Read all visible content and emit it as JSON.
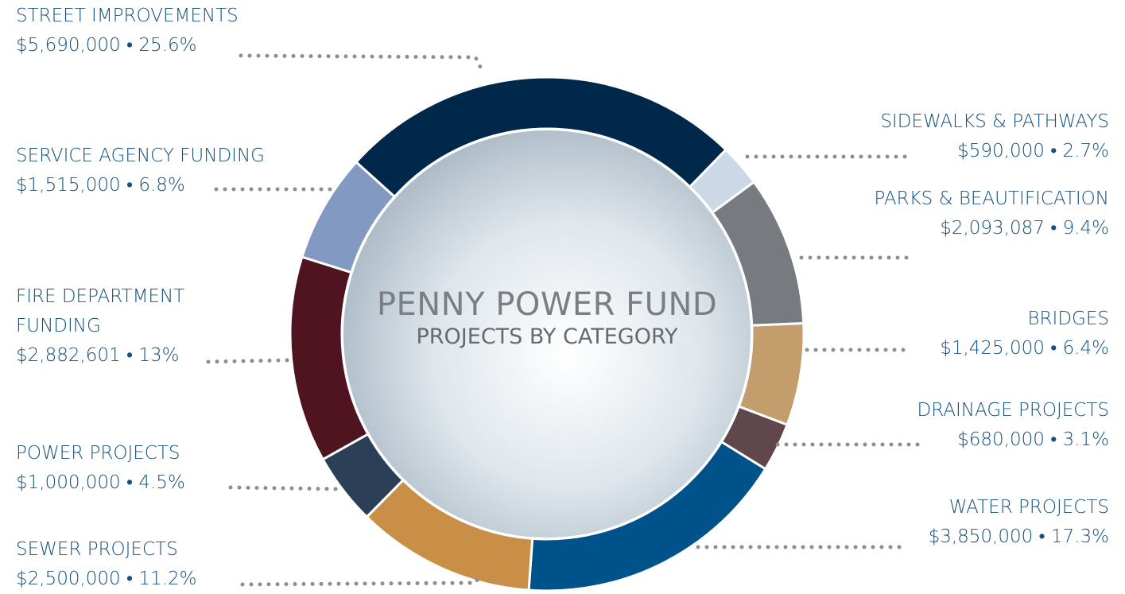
{
  "chart_data": {
    "type": "pie",
    "title": "PENNY POWER FUND",
    "subtitle": "PROJECTS BY CATEGORY",
    "categories": [
      "STREET IMPROVEMENTS",
      "SIDEWALKS & PATHWAYS",
      "PARKS & BEAUTIFICATION",
      "BRIDGES",
      "DRAINAGE PROJECTS",
      "WATER PROJECTS",
      "SEWER PROJECTS",
      "POWER PROJECTS",
      "FIRE DEPARTMENT FUNDING",
      "SERVICE AGENCY FUNDING"
    ],
    "values": [
      5690000,
      590000,
      2093087,
      1425000,
      680000,
      3850000,
      2500000,
      1000000,
      2882601,
      1515000
    ],
    "value_labels": [
      "$5,690,000 • 25.6%",
      "$590,000 • 2.7%",
      "$2,093,087 • 9.4%",
      "$1,425,000 • 6.4%",
      "$680,000 • 3.1%",
      "$3,850,000 • 17.3%",
      "$2,500,000 • 11.2%",
      "$1,000,000 • 4.5%",
      "$2,882,601 • 13%",
      "$1,515,000 • 6.8%"
    ],
    "colors": [
      "#00284b",
      "#cdd8e7",
      "#777b80",
      "#c49d6d",
      "#5f474b",
      "#00538a",
      "#c98f46",
      "#2b3f57",
      "#4f1420",
      "#8299c1"
    ]
  }
}
